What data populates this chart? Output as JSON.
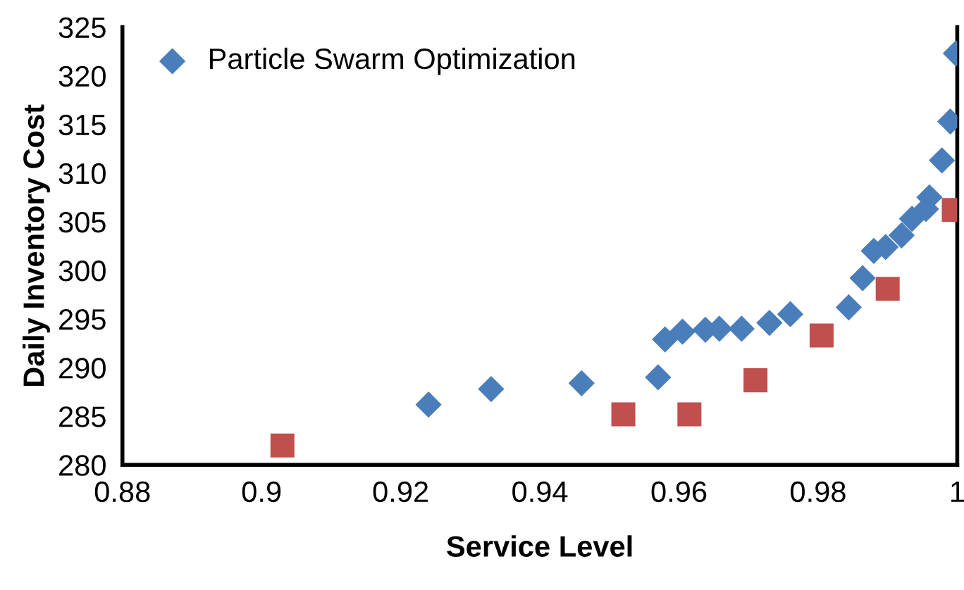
{
  "chart_data": {
    "type": "scatter",
    "xlabel": "Service Level",
    "ylabel": "Daily Inventory Cost",
    "xlim": [
      0.88,
      1
    ],
    "xticks": [
      0.88,
      0.9,
      0.92,
      0.94,
      0.96,
      0.98,
      1
    ],
    "ylim": [
      280,
      325
    ],
    "yticks": [
      280,
      285,
      290,
      295,
      300,
      305,
      310,
      315,
      320,
      325
    ],
    "grid": false,
    "legend": "top left",
    "series": [
      {
        "name": "Particle Swarm Optimization",
        "color": "#4a7ebb",
        "marker": "diamond",
        "x": [
          0.924,
          0.933,
          0.946,
          0.957,
          0.958,
          0.9605,
          0.9638,
          0.9658,
          0.969,
          0.973,
          0.976,
          0.9844,
          0.9864,
          0.988,
          0.9897,
          0.992,
          0.9935,
          0.9955,
          0.996,
          0.9978,
          0.999,
          0.9998
        ],
        "values": [
          286.2,
          287.8,
          288.4,
          289.0,
          292.9,
          293.7,
          293.9,
          294.0,
          294.0,
          294.6,
          295.5,
          296.2,
          299.2,
          302.0,
          302.4,
          303.6,
          305.3,
          306.3,
          307.5,
          311.3,
          315.3,
          322.3
        ]
      },
      {
        "color": "#c0504d",
        "marker": "square",
        "x": [
          0.903,
          0.952,
          0.9615,
          0.971,
          0.9805,
          0.99,
          0.9995
        ],
        "values": [
          282.0,
          285.2,
          285.2,
          288.7,
          293.3,
          298.1,
          306.2
        ]
      }
    ]
  }
}
